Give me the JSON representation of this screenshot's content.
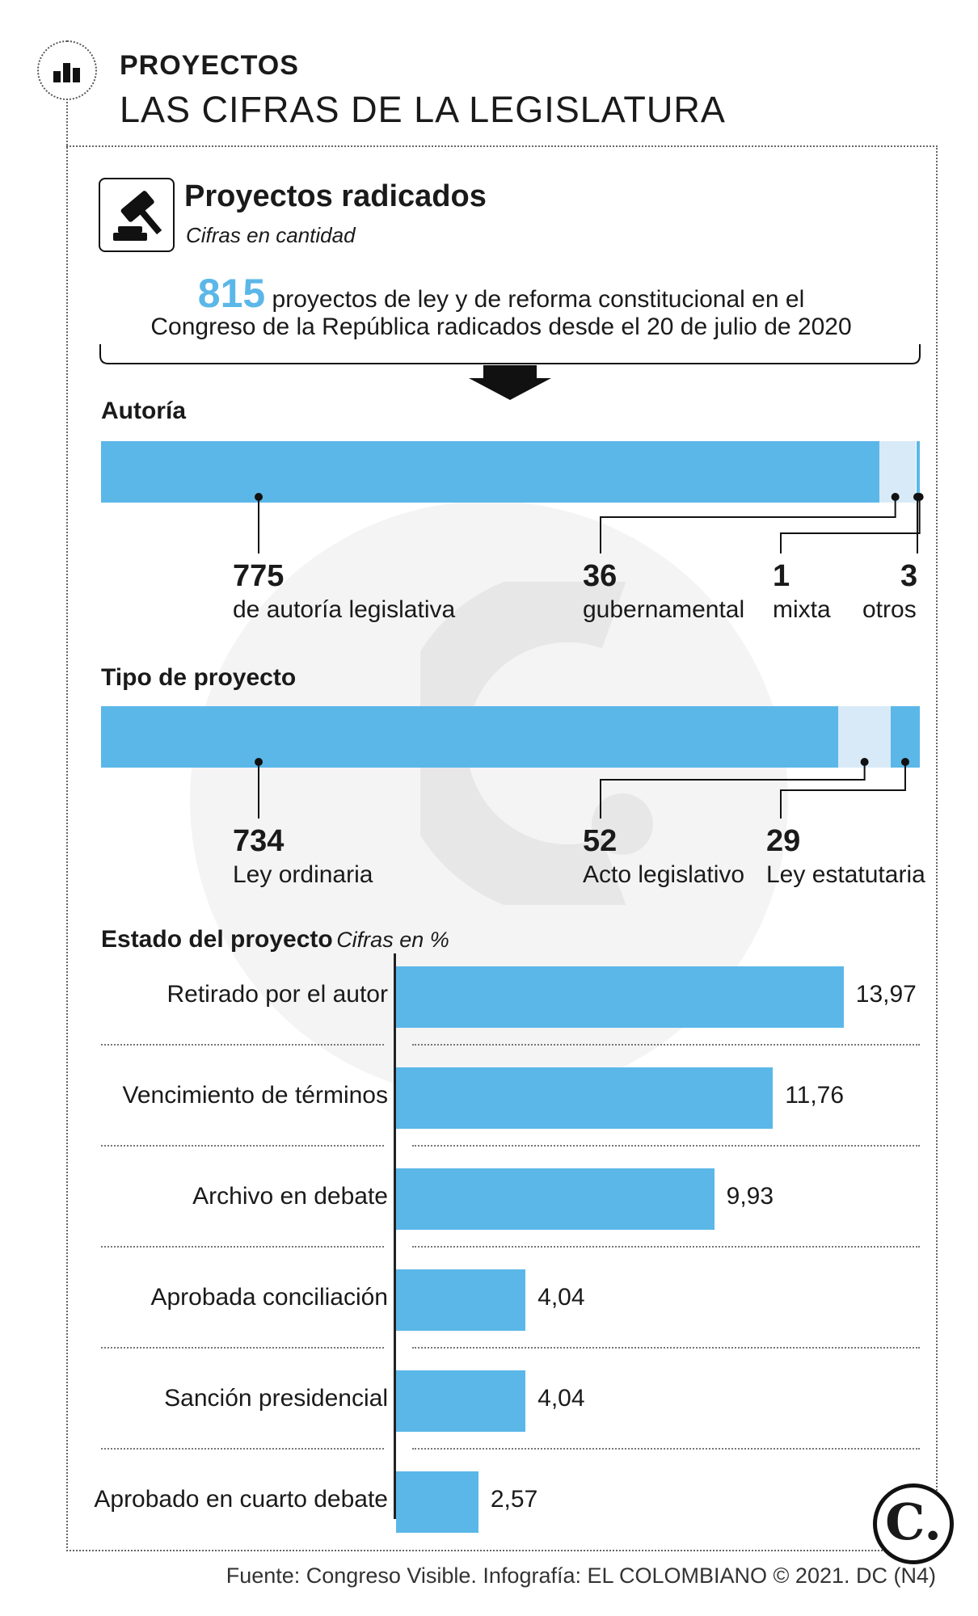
{
  "header": {
    "kicker": "PROYECTOS",
    "title": "LAS CIFRAS DE LA LEGISLATURA"
  },
  "section": {
    "title": "Proyectos radicados",
    "subtitle": "Cifras en cantidad"
  },
  "total": {
    "value": "815",
    "text_1": "proyectos de ley y de reforma constitucional en el",
    "text_2": "Congreso de la República radicados desde el 20 de julio de 2020"
  },
  "autoria": {
    "heading": "Autoría",
    "items": [
      {
        "value": "775",
        "label": "de autoría legislativa"
      },
      {
        "value": "36",
        "label": "gubernamental"
      },
      {
        "value": "1",
        "label": "mixta"
      },
      {
        "value": "3",
        "label": "otros"
      }
    ]
  },
  "tipo": {
    "heading": "Tipo de proyecto",
    "items": [
      {
        "value": "734",
        "label": "Ley ordinaria"
      },
      {
        "value": "52",
        "label": "Acto legislativo"
      },
      {
        "value": "29",
        "label": "Ley estatutaria"
      }
    ]
  },
  "estado": {
    "heading": "Estado del proyecto",
    "unit_note": "Cifras en %"
  },
  "chart_data": [
    {
      "type": "bar",
      "orientation": "horizontal-stacked",
      "categories": [
        "de autoría legislativa",
        "gubernamental",
        "mixta",
        "otros"
      ],
      "values": [
        775,
        36,
        1,
        3
      ]
    },
    {
      "type": "bar",
      "orientation": "horizontal-stacked",
      "categories": [
        "Ley ordinaria",
        "Acto legislativo",
        "Ley estatutaria"
      ],
      "values": [
        734,
        52,
        29
      ]
    },
    {
      "type": "bar",
      "orientation": "horizontal",
      "categories": [
        "Retirado por el autor",
        "Vencimiento de términos",
        "Archivo en debate",
        "Aprobada conciliación",
        "Sanción presidencial",
        "Aprobado en cuarto debate"
      ],
      "values": [
        13.97,
        11.76,
        9.93,
        4.04,
        4.04,
        2.57
      ],
      "value_labels": [
        "13,97",
        "11,76",
        "9,93",
        "4,04",
        "4,04",
        "2,57"
      ]
    }
  ],
  "colors": {
    "accent": "#5bb7e8",
    "light": "#d8eaf7",
    "mid": "#5bb7e8"
  },
  "footer": {
    "source": "Fuente: Congreso Visible. Infografía: EL COLOMBIANO © 2021. DC (N4)",
    "logo": "C."
  }
}
